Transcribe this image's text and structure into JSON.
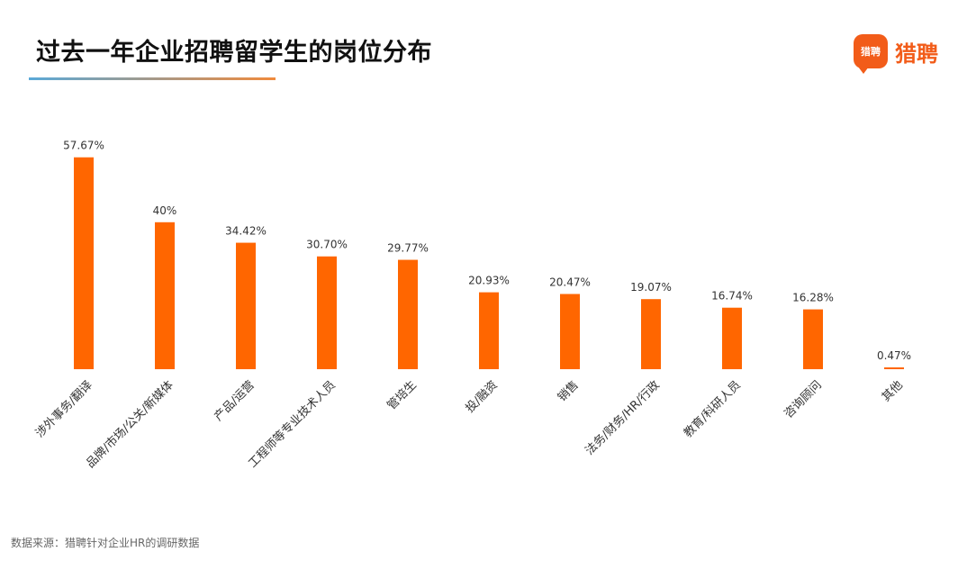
{
  "header": {
    "title": "过去一年企业招聘留学生的岗位分布",
    "logo_badge": "猎聘",
    "logo_text": "猎聘"
  },
  "footer": {
    "source": "数据来源：猎聘针对企业HR的调研数据"
  },
  "colors": {
    "bar": "#ff6600",
    "brand": "#f25c19"
  },
  "chart_data": {
    "type": "bar",
    "title": "过去一年企业招聘留学生的岗位分布",
    "xlabel": "",
    "ylabel": "",
    "ylim": [
      0,
      60
    ],
    "grid": false,
    "categories": [
      "涉外事务/翻译",
      "品牌/市场/公关/新媒体",
      "产品/运营",
      "工程师等专业技术人员",
      "管培生",
      "投/融资",
      "销售",
      "法务/财务/HR/行政",
      "教育/科研人员",
      "咨询顾问",
      "其他"
    ],
    "values": [
      57.67,
      40,
      34.42,
      30.7,
      29.77,
      20.93,
      20.47,
      19.07,
      16.74,
      16.28,
      0.47
    ],
    "value_labels": [
      "57.67%",
      "40%",
      "34.42%",
      "30.70%",
      "29.77%",
      "20.93%",
      "20.47%",
      "19.07%",
      "16.74%",
      "16.28%",
      "0.47%"
    ]
  }
}
